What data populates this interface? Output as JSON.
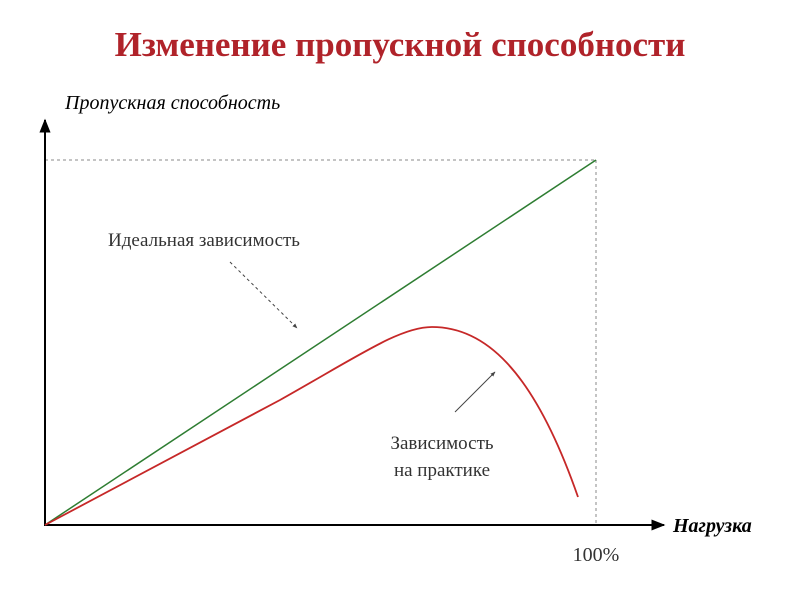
{
  "title": "Изменение пропускной способности",
  "axes": {
    "y_label": "Пропускная способность",
    "x_label": "Нагрузка",
    "x_max_label": "100%"
  },
  "annotations": {
    "ideal": "Идеальная зависимость",
    "practice": [
      "Зависимость",
      "на практике"
    ]
  }
}
